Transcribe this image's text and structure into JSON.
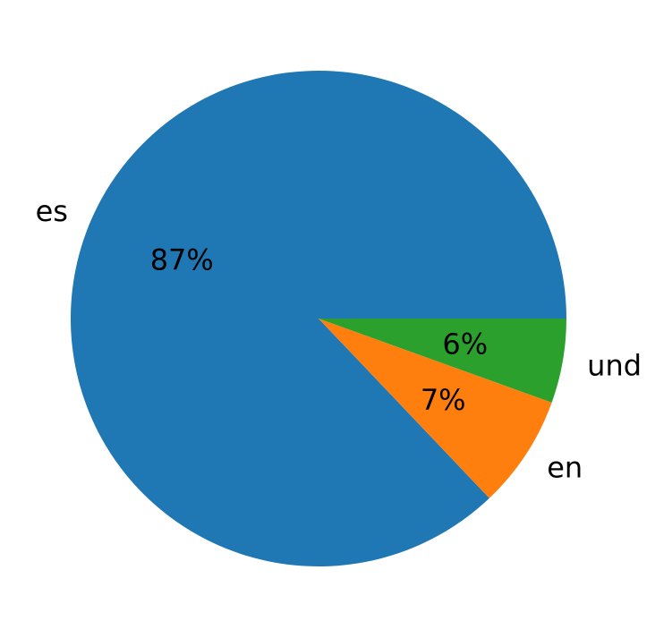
{
  "chart_data": {
    "type": "pie",
    "title": "",
    "slices": [
      {
        "label": "es",
        "value": 87.1,
        "pct_label": "87%",
        "color": "#1f77b4"
      },
      {
        "label": "en",
        "value": 7.4,
        "pct_label": "7%",
        "color": "#ff7f0e"
      },
      {
        "label": "und",
        "value": 5.5,
        "pct_label": "6%",
        "color": "#2ca02c"
      }
    ],
    "start_angle": 0,
    "direction": "counterclockwise",
    "legend": "none"
  }
}
